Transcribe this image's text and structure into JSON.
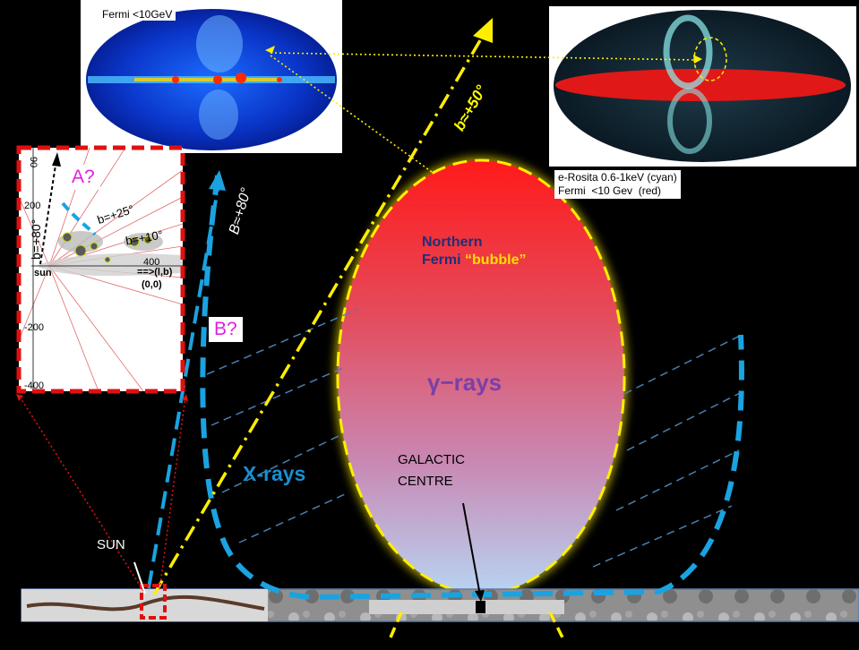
{
  "maps": {
    "fermi_label": "Fermi <10GeV",
    "erosita_label": "e-Rosita 0.6-1keV (cyan)\nFermi  <10 Gev  (red)"
  },
  "inset": {
    "question": "A?",
    "ticks": [
      "90",
      "200",
      "-200",
      "-400",
      "400"
    ],
    "labels": {
      "b80": "b=+80°",
      "b25": "b=+25°",
      "b10": "b=+10°",
      "sun": "sun",
      "lb": "==>(l,b)",
      "origin": "(0,0)"
    }
  },
  "diagram": {
    "question_b": "B?",
    "b80_label": "B≈+80°",
    "b50_label": "b≈+50°",
    "bubble_title_line1": "Northern",
    "bubble_title_line2_a": "Fermi",
    "bubble_title_line2_b": "“bubble”",
    "gamma_label": "γ−rays",
    "xray_label": "X-rays",
    "galactic_centre": "GALACTIC\nCENTRE",
    "sun_label": "SUN"
  },
  "colors": {
    "background": "#000000",
    "bubble_top": "#ff1a1a",
    "bubble_bottom": "#b8d4f2",
    "dash_yellow": "#ffee00",
    "dash_blue": "#1aa3e0",
    "inset_border": "#e01010"
  }
}
